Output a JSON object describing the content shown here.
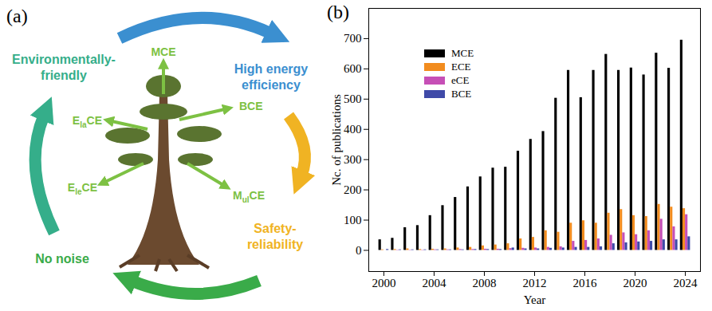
{
  "chart_data": {
    "type": "bar",
    "title": "(b)",
    "x": [
      2000,
      2001,
      2002,
      2003,
      2004,
      2005,
      2006,
      2007,
      2008,
      2009,
      2010,
      2011,
      2012,
      2013,
      2014,
      2015,
      2016,
      2017,
      2018,
      2019,
      2020,
      2021,
      2022,
      2023,
      2024
    ],
    "series": [
      {
        "name": "MCE",
        "color": "#000000",
        "values": [
          35,
          40,
          75,
          82,
          115,
          148,
          175,
          210,
          243,
          272,
          275,
          328,
          367,
          393,
          503,
          595,
          505,
          595,
          648,
          595,
          603,
          580,
          652,
          602,
          695
        ]
      },
      {
        "name": "ECE",
        "color": "#f28c1e",
        "values": [
          2,
          3,
          5,
          3,
          4,
          5,
          8,
          10,
          15,
          18,
          22,
          38,
          43,
          65,
          60,
          90,
          98,
          90,
          123,
          135,
          115,
          112,
          152,
          143,
          138
        ]
      },
      {
        "name": "eCE",
        "color": "#c64fb6",
        "values": [
          0,
          1,
          1,
          1,
          2,
          2,
          3,
          3,
          4,
          4,
          6,
          7,
          8,
          10,
          12,
          30,
          33,
          38,
          50,
          58,
          52,
          65,
          103,
          78,
          118
        ]
      },
      {
        "name": "BCE",
        "color": "#3f4aa8",
        "values": [
          3,
          2,
          2,
          2,
          2,
          2,
          2,
          3,
          3,
          3,
          8,
          5,
          5,
          7,
          8,
          10,
          10,
          12,
          22,
          25,
          28,
          30,
          35,
          35,
          45
        ]
      }
    ],
    "xlabel": "Year",
    "ylabel": "Nc. of publications",
    "xlim": [
      1998.8,
      2025.2
    ],
    "xticks": [
      2000,
      2004,
      2008,
      2012,
      2016,
      2020,
      2024
    ],
    "ylim": [
      -70,
      800
    ],
    "yticks": [
      0,
      100,
      200,
      300,
      400,
      500,
      600,
      700
    ],
    "grid": false,
    "legend": "upper left"
  },
  "diagram": {
    "label": "(a)",
    "cycle": [
      "High energy efficiency",
      "Safety-reliability",
      "No noise",
      "Environmentally-friendly"
    ],
    "branches": [
      {
        "text": "MCE"
      },
      {
        "text": "BCE"
      },
      {
        "text": "M",
        "sub": "ul",
        "after": "CE"
      },
      {
        "text": "E",
        "sub": "le",
        "after": "CE"
      },
      {
        "text": "E",
        "sub": "la",
        "after": "CE"
      }
    ]
  }
}
